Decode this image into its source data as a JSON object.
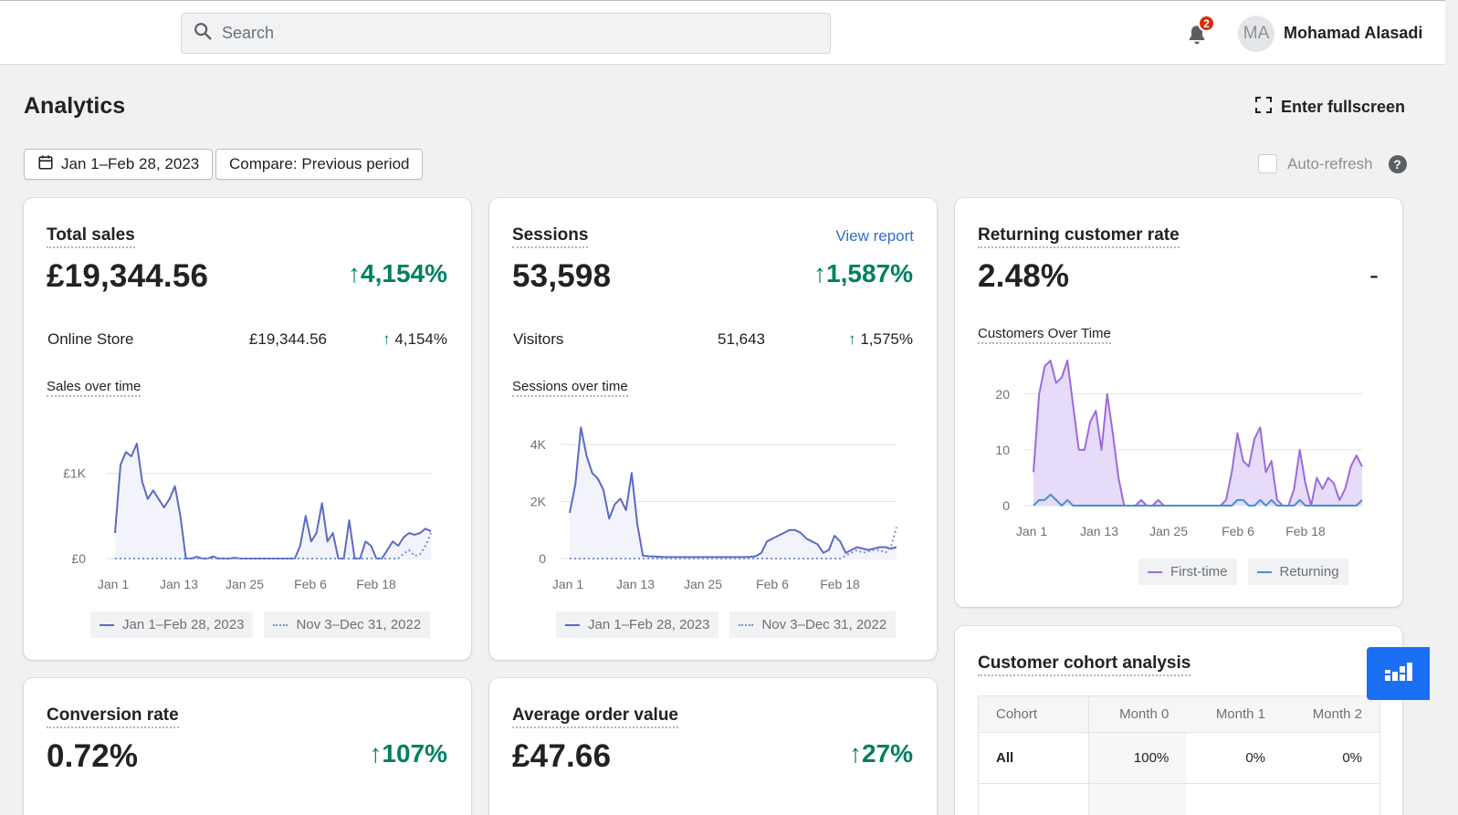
{
  "topbar": {
    "search_placeholder": "Search",
    "notifications_count": "2",
    "avatar_initials": "MA",
    "user_name": "Mohamad Alasadi"
  },
  "header": {
    "title": "Analytics",
    "fullscreen_label": "Enter fullscreen",
    "date_range_label": "Jan 1–Feb 28, 2023",
    "compare_label": "Compare: Previous period",
    "autorefresh_label": "Auto-refresh",
    "help_glyph": "?"
  },
  "total_sales": {
    "title": "Total sales",
    "value": "£19,344.56",
    "change": "4,154%",
    "breakdown": {
      "label": "Online Store",
      "value": "£19,344.56",
      "change": "4,154%"
    },
    "chart_title": "Sales over time",
    "legend": [
      "Jan 1–Feb 28, 2023",
      "Nov 3–Dec 31, 2022"
    ]
  },
  "sessions": {
    "title": "Sessions",
    "link": "View report",
    "value": "53,598",
    "change": "1,587%",
    "breakdown": {
      "label": "Visitors",
      "value": "51,643",
      "change": "1,575%"
    },
    "chart_title": "Sessions over time",
    "legend": [
      "Jan 1–Feb 28, 2023",
      "Nov 3–Dec 31, 2022"
    ]
  },
  "returning": {
    "title": "Returning customer rate",
    "value": "2.48%",
    "change": "-",
    "chart_title": "Customers Over Time",
    "legend": [
      "First-time",
      "Returning"
    ]
  },
  "conversion": {
    "title": "Conversion rate",
    "value": "0.72%",
    "change": "107%"
  },
  "aov": {
    "title": "Average order value",
    "value": "£47.66",
    "change": "27%"
  },
  "cohort": {
    "title": "Customer cohort analysis",
    "columns": [
      "Cohort",
      "Month 0",
      "Month 1",
      "Month 2"
    ],
    "rows": [
      [
        "All",
        "100%",
        "0%",
        "0%"
      ]
    ]
  },
  "colors": {
    "positive": "#008060",
    "primary_line": "#5c6ac4",
    "first_time": "#9c6ade",
    "returning": "#4a8fcf",
    "fab": "#1b6ff3"
  },
  "chart_data": [
    {
      "type": "line",
      "title": "Sales over time",
      "x_ticks": [
        "Jan 1",
        "Jan 13",
        "Jan 25",
        "Feb 6",
        "Feb 18"
      ],
      "y_ticks": [
        "£0",
        "£1K"
      ],
      "ylim": [
        0,
        1500
      ],
      "series": [
        {
          "name": "Jan 1–Feb 28, 2023",
          "style": "solid",
          "values": [
            300,
            1100,
            1250,
            1200,
            1350,
            900,
            700,
            800,
            700,
            600,
            700,
            850,
            500,
            0,
            0,
            20,
            0,
            0,
            25,
            0,
            0,
            0,
            10,
            0,
            0,
            0,
            0,
            0,
            0,
            0,
            0,
            0,
            0,
            0,
            150,
            500,
            200,
            300,
            650,
            200,
            300,
            0,
            0,
            450,
            0,
            0,
            200,
            150,
            0,
            0,
            100,
            200,
            150,
            250,
            300,
            280,
            300,
            350,
            320
          ]
        },
        {
          "name": "Nov 3–Dec 31, 2022",
          "style": "dotted",
          "values": [
            0,
            0,
            0,
            0,
            0,
            0,
            0,
            0,
            0,
            0,
            0,
            0,
            0,
            0,
            0,
            0,
            0,
            0,
            0,
            0,
            0,
            0,
            0,
            0,
            0,
            0,
            0,
            0,
            0,
            0,
            0,
            0,
            0,
            0,
            0,
            0,
            0,
            0,
            0,
            0,
            0,
            0,
            0,
            0,
            0,
            0,
            0,
            0,
            0,
            0,
            0,
            0,
            0,
            60,
            100,
            30,
            50,
            150,
            300
          ]
        }
      ]
    },
    {
      "type": "line",
      "title": "Sessions over time",
      "x_ticks": [
        "Jan 1",
        "Jan 13",
        "Jan 25",
        "Feb 6",
        "Feb 18"
      ],
      "y_ticks": [
        "0",
        "2K",
        "4K"
      ],
      "ylim": [
        0,
        4800
      ],
      "series": [
        {
          "name": "Jan 1–Feb 28, 2023",
          "style": "solid",
          "values": [
            1600,
            2600,
            4600,
            3600,
            3000,
            2800,
            2400,
            1400,
            1900,
            2100,
            1700,
            3000,
            1200,
            100,
            80,
            70,
            60,
            50,
            50,
            50,
            50,
            50,
            50,
            50,
            50,
            50,
            50,
            50,
            50,
            50,
            50,
            50,
            60,
            80,
            200,
            600,
            700,
            800,
            900,
            1000,
            1000,
            900,
            700,
            600,
            500,
            200,
            300,
            800,
            600,
            200,
            300,
            400,
            350,
            300,
            350,
            400,
            400,
            350,
            400
          ]
        },
        {
          "name": "Nov 3–Dec 31, 2022",
          "style": "dotted",
          "values": [
            0,
            0,
            0,
            0,
            0,
            0,
            0,
            0,
            0,
            0,
            0,
            0,
            0,
            0,
            0,
            0,
            0,
            0,
            0,
            0,
            0,
            0,
            0,
            0,
            0,
            0,
            0,
            0,
            0,
            0,
            0,
            0,
            0,
            0,
            0,
            0,
            0,
            0,
            0,
            0,
            0,
            0,
            0,
            0,
            0,
            0,
            0,
            0,
            0,
            100,
            200,
            300,
            200,
            250,
            300,
            300,
            200,
            400,
            1100
          ]
        }
      ]
    },
    {
      "type": "area",
      "title": "Customers Over Time",
      "x_ticks": [
        "Jan 1",
        "Jan 13",
        "Jan 25",
        "Feb 6",
        "Feb 18"
      ],
      "y_ticks": [
        "0",
        "10",
        "20"
      ],
      "ylim": [
        0,
        27
      ],
      "series": [
        {
          "name": "First-time",
          "values": [
            6,
            20,
            25,
            26,
            22,
            23,
            26,
            18,
            10,
            10,
            15,
            17,
            10,
            20,
            13,
            5,
            0,
            0,
            0,
            1,
            0,
            0,
            1,
            0,
            0,
            0,
            0,
            0,
            0,
            0,
            0,
            0,
            0,
            0,
            1,
            6,
            13,
            8,
            7,
            12,
            14,
            6,
            8,
            1,
            0,
            0,
            3,
            10,
            4,
            0,
            5,
            3,
            5,
            4,
            1,
            3,
            7,
            9,
            7
          ]
        },
        {
          "name": "Returning",
          "values": [
            0,
            1,
            1,
            2,
            1,
            0,
            1,
            0,
            0,
            0,
            0,
            0,
            0,
            0,
            0,
            0,
            0,
            0,
            0,
            0,
            0,
            0,
            0,
            0,
            0,
            0,
            0,
            0,
            0,
            0,
            0,
            0,
            0,
            0,
            0,
            0,
            1,
            1,
            0,
            0,
            1,
            0,
            1,
            0,
            0,
            0,
            0,
            1,
            0,
            0,
            0,
            0,
            0,
            0,
            0,
            0,
            0,
            0,
            1
          ]
        }
      ]
    }
  ]
}
